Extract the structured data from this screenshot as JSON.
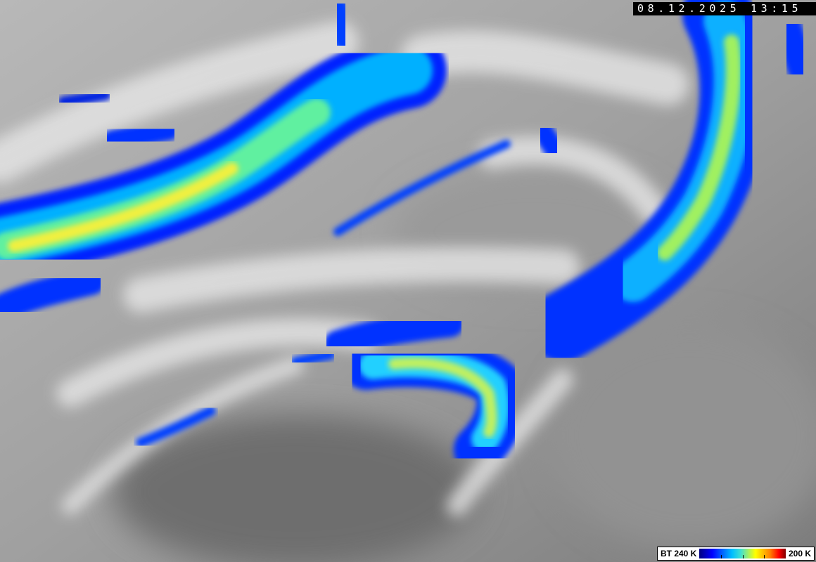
{
  "image": {
    "kind": "infrared satellite imagery",
    "timestamp": "08.12.2025 13:15"
  },
  "legend": {
    "left_label": "BT 240 K",
    "right_label": "200 K",
    "colors": [
      "#000080",
      "#0000ff",
      "#00bfff",
      "#40e0d0",
      "#ffff00",
      "#ff8000",
      "#ff0000",
      "#800000"
    ]
  }
}
